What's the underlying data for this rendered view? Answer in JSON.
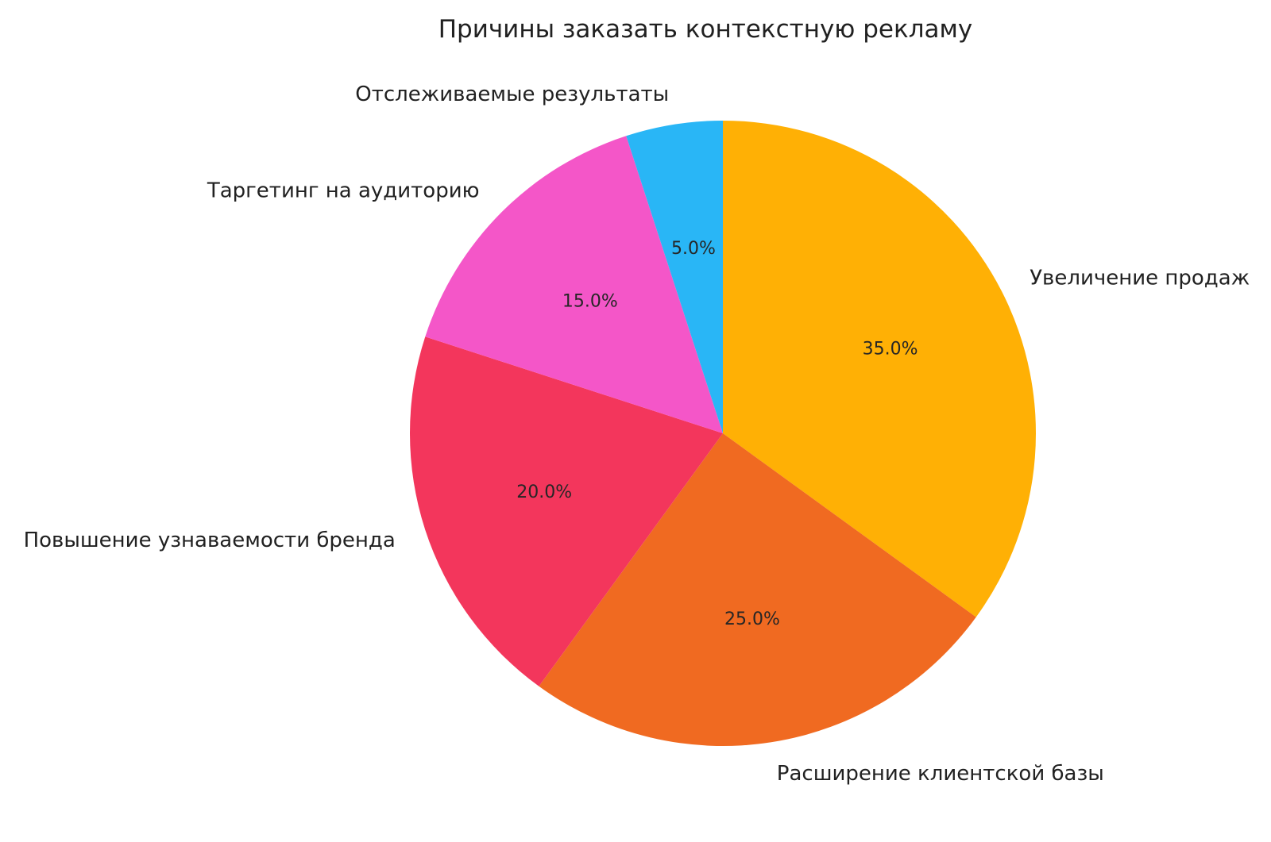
{
  "chart_data": {
    "type": "pie",
    "title": "Причины заказать контекстную рекламу",
    "labels": [
      "Увеличение продаж",
      "Расширение клиентской базы",
      "Повышение узнаваемости бренда",
      "Таргетинг на аудиторию",
      "Отслеживаемые результаты"
    ],
    "values": [
      35.0,
      25.0,
      20.0,
      15.0,
      5.0
    ],
    "pct_labels": [
      "35.0%",
      "25.0%",
      "20.0%",
      "15.0%",
      "5.0%"
    ],
    "colors": [
      "#FFB005",
      "#F06A21",
      "#F3365C",
      "#F456C8",
      "#29B6F6"
    ],
    "start_angle": "top",
    "direction": "clockwise",
    "label_distance": 1.1,
    "pct_distance": 0.6,
    "legend": "none",
    "background": "#ffffff",
    "text_color": "#212121"
  }
}
